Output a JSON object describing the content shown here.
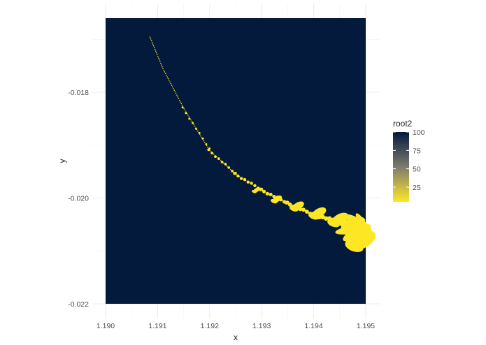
{
  "chart_data": {
    "type": "heatmap",
    "title": "",
    "xlabel": "x",
    "ylabel": "y",
    "xlim": [
      1.19,
      1.195
    ],
    "ylim": [
      -0.022,
      -0.0166
    ],
    "x_ticks": [
      "1.190",
      "1.191",
      "1.192",
      "1.193",
      "1.194",
      "1.195"
    ],
    "x_tick_values": [
      1.19,
      1.191,
      1.192,
      1.193,
      1.194,
      1.195
    ],
    "y_ticks": [
      "-0.018",
      "-0.020",
      "-0.022"
    ],
    "y_tick_values": [
      -0.018,
      -0.02,
      -0.022
    ],
    "grid": true,
    "fill_variable": "root2",
    "background_value": 100,
    "colorscale": {
      "low_value": 5,
      "high_value": 100,
      "low_color": "#fde725",
      "mid_color": "#7d7b6f",
      "high_color": "#041a3c"
    },
    "legend": {
      "title": "root2",
      "position": "right",
      "breaks": [
        {
          "label": "100",
          "value": 100
        },
        {
          "label": "75",
          "value": 75
        },
        {
          "label": "50",
          "value": 50
        },
        {
          "label": "25",
          "value": 25
        }
      ]
    },
    "fractal_curve": [
      {
        "x": 1.19085,
        "y": -0.01695
      },
      {
        "x": 1.1911,
        "y": -0.01755
      },
      {
        "x": 1.1915,
        "y": -0.0183
      },
      {
        "x": 1.192,
        "y": -0.0191
      },
      {
        "x": 1.1925,
        "y": -0.01955
      },
      {
        "x": 1.193,
        "y": -0.01985
      },
      {
        "x": 1.1935,
        "y": -0.0201
      },
      {
        "x": 1.194,
        "y": -0.02032
      },
      {
        "x": 1.1945,
        "y": -0.02045
      },
      {
        "x": 1.195,
        "y": -0.02055
      }
    ],
    "fractal_blobs": [
      {
        "x": 1.1929,
        "y": -0.01985,
        "value": 5
      },
      {
        "x": 1.1933,
        "y": -0.02002,
        "value": 5
      },
      {
        "x": 1.1937,
        "y": -0.02015,
        "value": 5
      },
      {
        "x": 1.1941,
        "y": -0.02028,
        "value": 5
      },
      {
        "x": 1.1945,
        "y": -0.0204,
        "value": 5
      },
      {
        "x": 1.1948,
        "y": -0.0205,
        "value": 5
      },
      {
        "x": 1.1949,
        "y": -0.0207,
        "value": 5
      },
      {
        "x": 1.19495,
        "y": -0.0208,
        "value": 5
      }
    ]
  }
}
